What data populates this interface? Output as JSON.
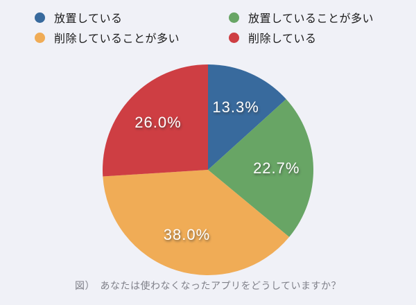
{
  "page": {
    "background": "#F0F1F7"
  },
  "chart_data": {
    "type": "pie",
    "title": "図）　あなたは使わなくなったアプリをどうしていますか？",
    "legend_position": "top",
    "start_angle_deg": 0,
    "direction": "clockwise",
    "label_color": "#FFFFFF",
    "caption_color": "#7F8089",
    "slices": [
      {
        "label": "放置している",
        "value": 13.3,
        "pct_label": "13.3%",
        "color": "#386A9D"
      },
      {
        "label": "放置していることが多い",
        "value": 22.7,
        "pct_label": "22.7%",
        "color": "#68A565"
      },
      {
        "label": "削除していることが多い",
        "value": 38.0,
        "pct_label": "38.0%",
        "color": "#F0AC56"
      },
      {
        "label": "削除している",
        "value": 26.0,
        "pct_label": "26.0%",
        "color": "#CE3E43"
      }
    ]
  }
}
